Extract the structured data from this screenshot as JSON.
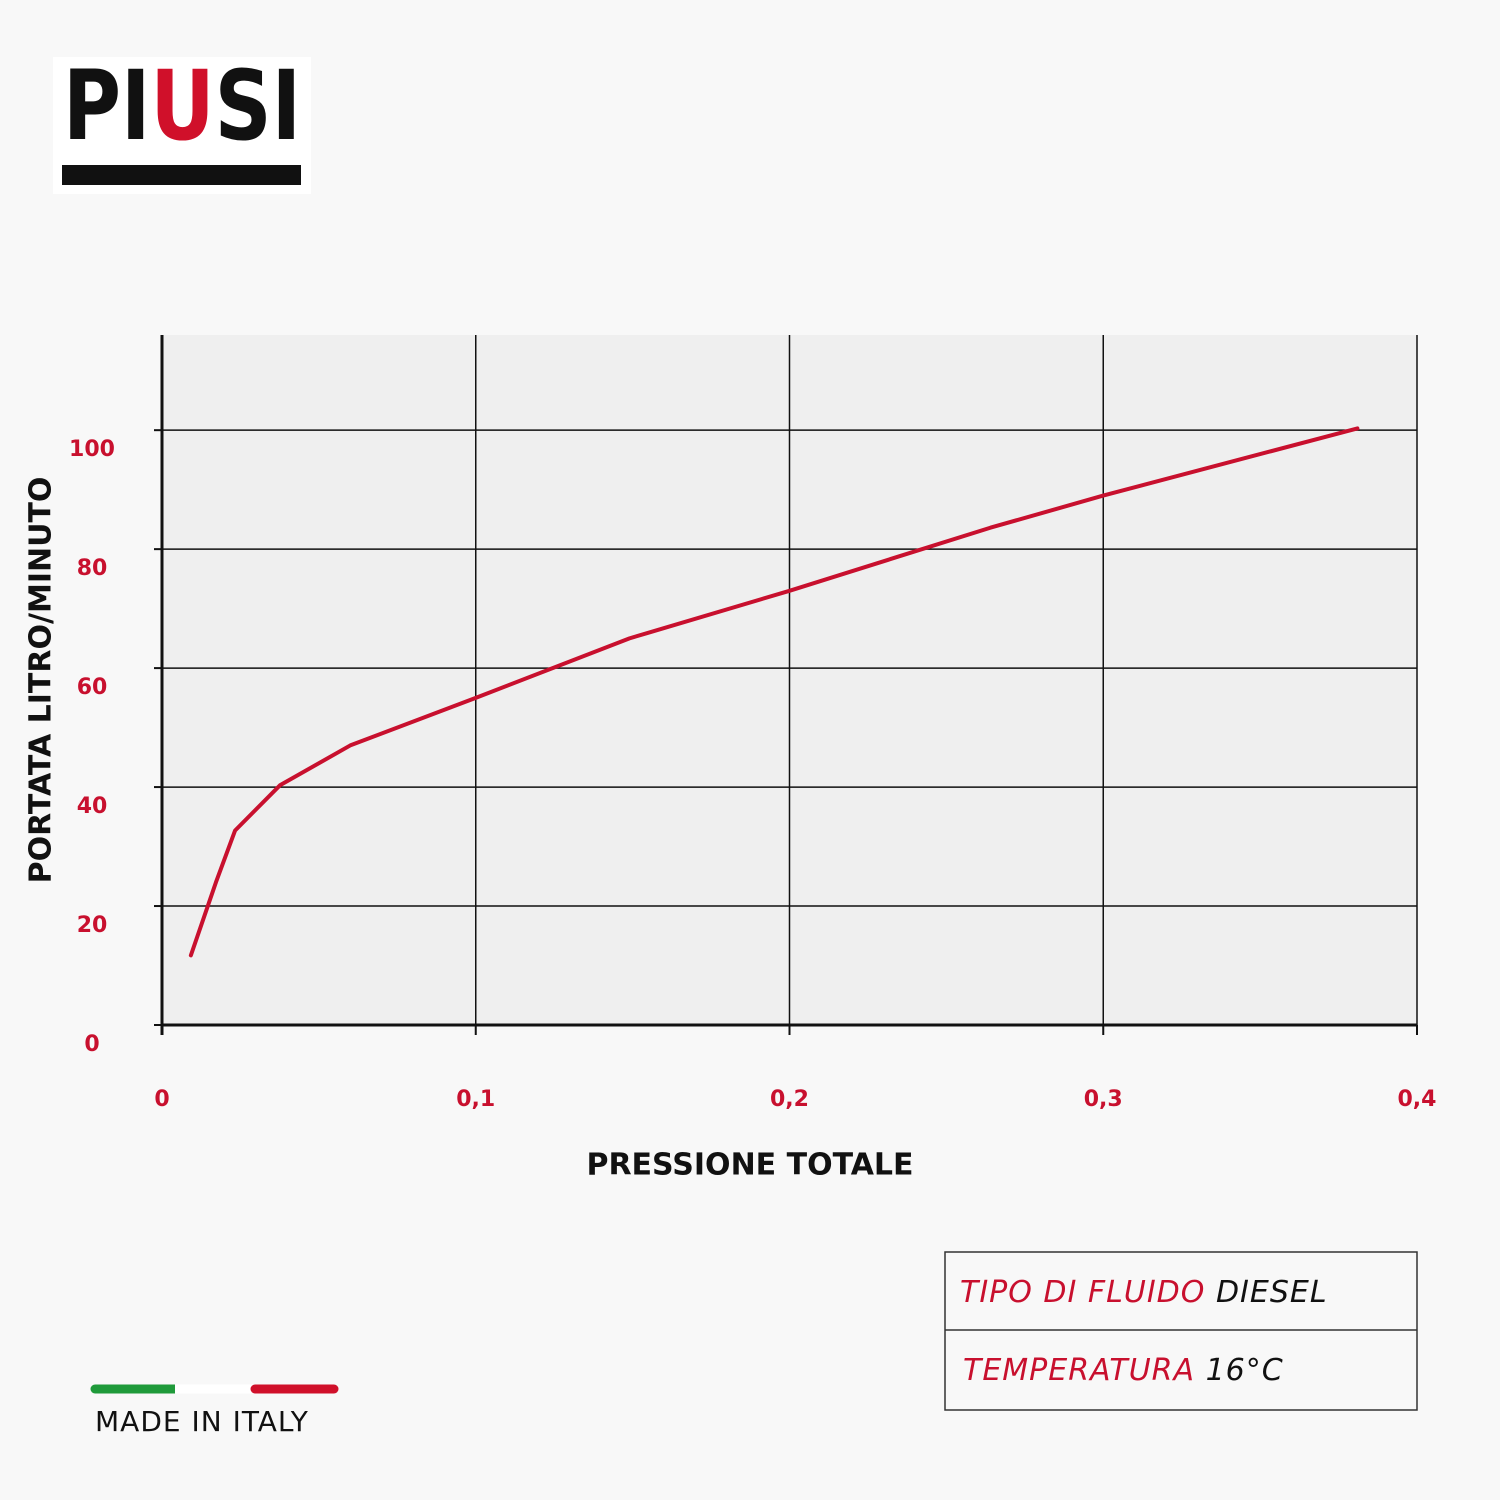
{
  "logo": {
    "parts": [
      "PI",
      "U",
      "SI"
    ]
  },
  "chart_data": {
    "type": "line",
    "x_label": "PRESSIONE TOTALE",
    "y_label": "PORTATA LITRO/MINUTO",
    "x": [
      0.0092,
      0.0172,
      0.0233,
      0.0376,
      0.06,
      0.1,
      0.149,
      0.2,
      0.264,
      0.3,
      0.381
    ],
    "values": [
      11.7,
      24,
      32.7,
      40.3,
      47,
      55,
      65,
      73,
      83.6,
      89,
      100.3
    ],
    "color": "#c8102e",
    "xlim": [
      0,
      0.4
    ],
    "ylim": [
      0,
      116
    ],
    "xticks": [
      0,
      {
        "value": 0.1,
        "label": "0,1"
      },
      {
        "value": 0.2,
        "label": "0,2"
      },
      {
        "value": 0.3,
        "label": "0,3"
      },
      {
        "value": 0.4,
        "label": "0,4"
      }
    ],
    "yticks": [
      0,
      20,
      40,
      60,
      80,
      100
    ],
    "grid": true
  },
  "info": {
    "rows": [
      [
        "TIPO DI FLUIDO",
        "DIESEL"
      ],
      [
        "TEMPERATURA",
        "16°C"
      ]
    ]
  },
  "footer": {
    "made_in": "MADE IN ITALY"
  }
}
